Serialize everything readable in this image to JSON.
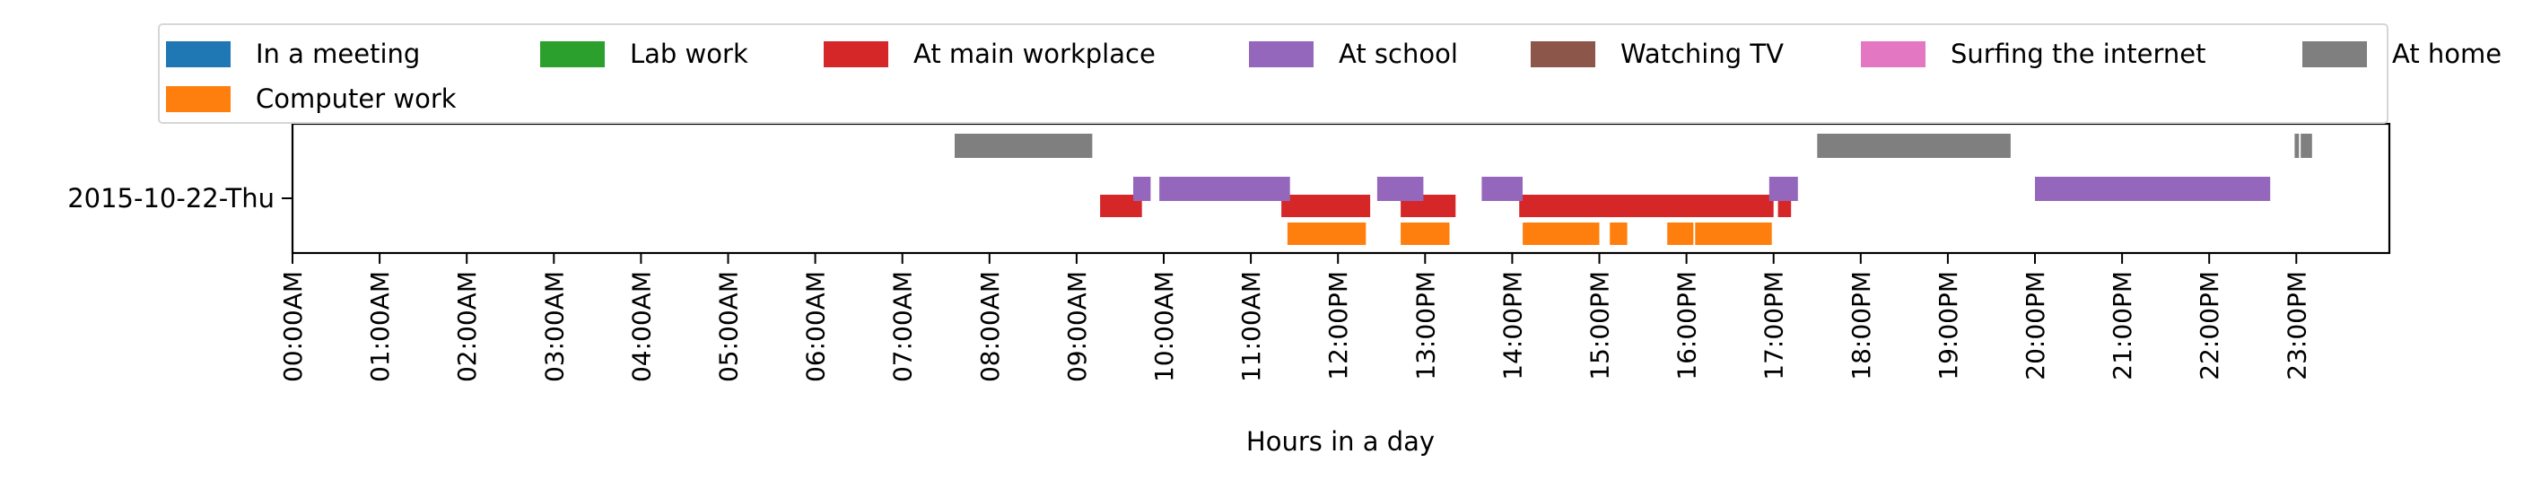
{
  "chart_data": {
    "type": "timeline",
    "title": "",
    "xlabel": "Hours in a day",
    "ylabel": "",
    "xlim": [
      0,
      24
    ],
    "x_ticks": [
      "00:00AM",
      "01:00AM",
      "02:00AM",
      "03:00AM",
      "04:00AM",
      "05:00AM",
      "06:00AM",
      "07:00AM",
      "08:00AM",
      "09:00AM",
      "10:00AM",
      "11:00AM",
      "12:00PM",
      "13:00PM",
      "14:00PM",
      "15:00PM",
      "16:00PM",
      "17:00PM",
      "18:00PM",
      "19:00PM",
      "20:00PM",
      "21:00PM",
      "22:00PM",
      "23:00PM"
    ],
    "categories": [
      "2015-10-22-Thu"
    ],
    "grid": false,
    "legend_position": "top",
    "series": [
      {
        "name": "In a meeting",
        "color": "#1f77b4",
        "intervals": []
      },
      {
        "name": "Lab work",
        "color": "#2ca02c",
        "intervals": []
      },
      {
        "name": "At main workplace",
        "color": "#d62728",
        "intervals": [
          [
            9.27,
            9.75
          ],
          [
            11.35,
            11.4
          ],
          [
            11.4,
            12.37
          ],
          [
            12.72,
            13.35
          ],
          [
            14.08,
            17.0
          ],
          [
            17.05,
            17.2
          ]
        ]
      },
      {
        "name": "At school",
        "color": "#9467bd",
        "intervals": [
          [
            9.65,
            9.85
          ],
          [
            9.95,
            11.45
          ],
          [
            12.45,
            12.98
          ],
          [
            13.65,
            14.12
          ],
          [
            16.95,
            17.28
          ],
          [
            20.0,
            22.7
          ]
        ]
      },
      {
        "name": "Watching TV",
        "color": "#8c564b",
        "intervals": []
      },
      {
        "name": "Surfing the internet",
        "color": "#e377c2",
        "intervals": []
      },
      {
        "name": "At home",
        "color": "#7f7f7f",
        "intervals": [
          [
            7.6,
            9.18
          ],
          [
            17.5,
            19.72
          ],
          [
            22.98,
            23.03
          ],
          [
            23.05,
            23.18
          ]
        ]
      },
      {
        "name": "Computer work",
        "color": "#ff7f0e",
        "intervals": [
          [
            11.42,
            12.32
          ],
          [
            12.72,
            13.28
          ],
          [
            14.12,
            15.0
          ],
          [
            15.12,
            15.32
          ],
          [
            15.78,
            16.08
          ],
          [
            16.1,
            16.98
          ]
        ]
      }
    ]
  }
}
